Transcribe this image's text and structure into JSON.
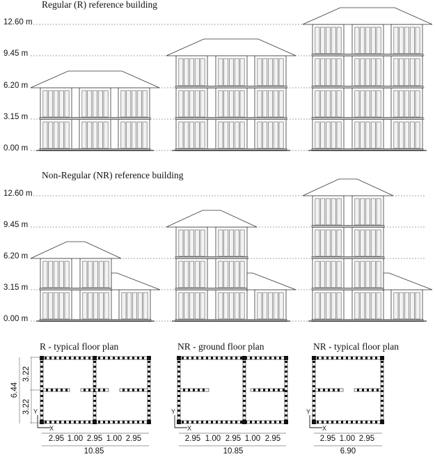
{
  "regular": {
    "title": "Regular (R) reference building",
    "levels": [
      "12.60 m",
      "9.45 m",
      "6.20 m",
      "3.15 m",
      "0.00 m"
    ]
  },
  "non_regular": {
    "title": "Non-Regular (NR) reference building",
    "levels": [
      "12.60 m",
      "9.45 m",
      "6.20 m",
      "3.15 m",
      "0.00 m"
    ]
  },
  "plans": [
    {
      "title": "R - typical floor plan",
      "spans": [
        "2.95",
        "1.00",
        "2.95",
        "1.00",
        "2.95"
      ],
      "total": "10.85",
      "depth_parts": [
        "3.22",
        "3.22"
      ],
      "depth_total": "6.44",
      "axis_x": "X",
      "axis_y": "Y"
    },
    {
      "title": "NR - ground floor plan",
      "spans": [
        "2.95",
        "1.00",
        "2.95",
        "1.00",
        "2.95"
      ],
      "total": "10.85",
      "axis_x": "X",
      "axis_y": "Y"
    },
    {
      "title": "NR - typical floor plan",
      "spans": [
        "2.95",
        "1.00",
        "2.95"
      ],
      "total": "6.90",
      "axis_x": "X",
      "axis_y": "Y"
    }
  ]
}
